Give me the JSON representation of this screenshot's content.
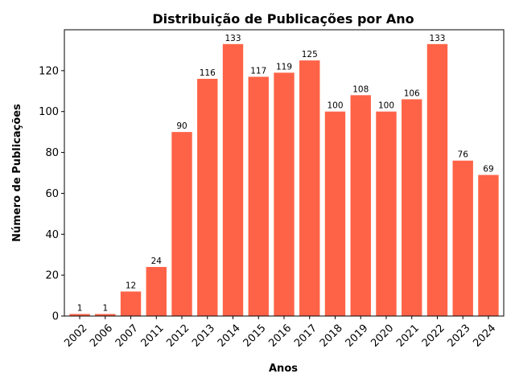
{
  "chart_data": {
    "type": "bar",
    "title": "Distribuição de Publicações por Ano",
    "xlabel": "Anos",
    "ylabel": "Número de Publicações",
    "categories": [
      "2002",
      "2006",
      "2007",
      "2011",
      "2012",
      "2013",
      "2014",
      "2015",
      "2016",
      "2017",
      "2018",
      "2019",
      "2020",
      "2021",
      "2022",
      "2023",
      "2024"
    ],
    "values": [
      1,
      1,
      12,
      24,
      90,
      116,
      133,
      117,
      119,
      125,
      100,
      108,
      100,
      106,
      133,
      76,
      69
    ],
    "data_labels": [
      "1",
      "1",
      "12",
      "24",
      "90",
      "116",
      "133",
      "117",
      "119",
      "125",
      "100",
      "108",
      "100",
      "106",
      "133",
      "76",
      "69"
    ],
    "ylim": [
      0,
      140
    ],
    "y_ticks": [
      0,
      20,
      40,
      60,
      80,
      100,
      120
    ],
    "y_tick_labels": [
      "0",
      "20",
      "40",
      "60",
      "80",
      "100",
      "120"
    ],
    "bar_color": "#ff6347",
    "grid": false,
    "legend": "none"
  }
}
